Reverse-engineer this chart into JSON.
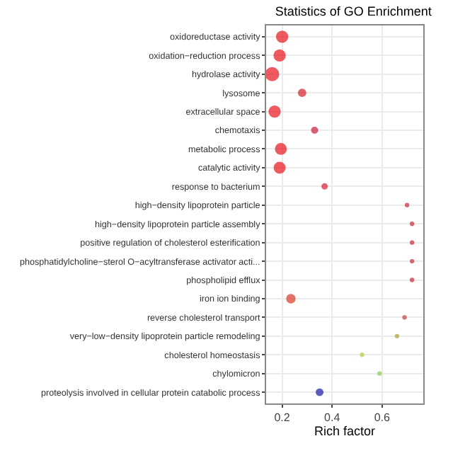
{
  "chart_data": {
    "type": "bubble",
    "title": "Statistics of GO Enrichment",
    "xlabel": "Rich factor",
    "categories": [
      "oxidoreductase activity",
      "oxidation−reduction process",
      "hydrolase activity",
      "lysosome",
      "extracellular space",
      "chemotaxis",
      "metabolic process",
      "catalytic activity",
      "response to bacterium",
      "high−density lipoprotein particle",
      "high−density lipoprotein particle assembly",
      "positive regulation of cholesterol esterification",
      "phosphatidylcholine−sterol O−acyltransferase activator acti...",
      "phospholipid efflux",
      "iron ion binding",
      "reverse cholesterol transport",
      "very−low−density lipoprotein particle remodeling",
      "cholesterol homeostasis",
      "chylomicron",
      "proteolysis involved in cellular protein catabolic process"
    ],
    "values": [
      0.2,
      0.19,
      0.16,
      0.28,
      0.17,
      0.33,
      0.195,
      0.19,
      0.37,
      0.7,
      0.72,
      0.72,
      0.72,
      0.72,
      0.235,
      0.69,
      0.66,
      0.52,
      0.59,
      0.35
    ],
    "sizes": [
      0.75,
      0.75,
      1,
      0.35,
      0.75,
      0.25,
      0.7,
      0.72,
      0.2,
      0.1,
      0.1,
      0.1,
      0.1,
      0.1,
      0.45,
      0.1,
      0.1,
      0.1,
      0.1,
      0.3
    ],
    "colors": [
      "#e8141c",
      "#e8141c",
      "#e8141c",
      "#d0202a",
      "#e8141c",
      "#c8203a",
      "#e8141c",
      "#e8141c",
      "#d42030",
      "#c82838",
      "#c82838",
      "#c82838",
      "#c82838",
      "#c82838",
      "#d83828",
      "#c83840",
      "#b0a030",
      "#a8d040",
      "#90c850",
      "#1a1aa0"
    ],
    "orientation": "horizontal",
    "xlim": [
      0.136,
      0.765
    ],
    "xticks": [
      0.2,
      0.4,
      0.6
    ],
    "grid": true
  }
}
